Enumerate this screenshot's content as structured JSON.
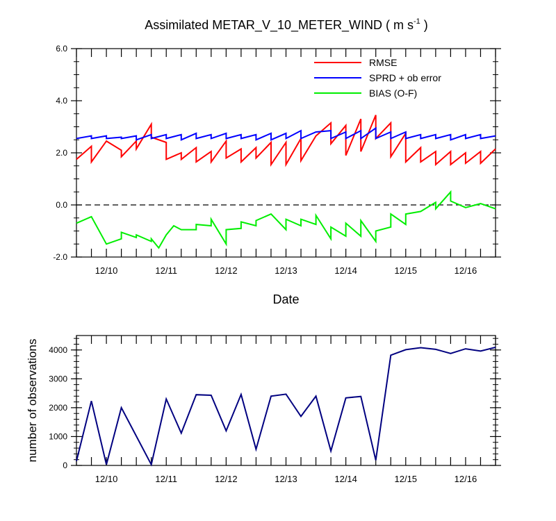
{
  "chart_data": [
    {
      "type": "line",
      "title_main": "Assimilated METAR_V_10_METER_WIND ( m s",
      "title_sup": "-1",
      "title_end": " )",
      "xlabel": "Date",
      "ylabel": "",
      "xlim": [
        0,
        28
      ],
      "ylim": [
        -2,
        6
      ],
      "ytick_values": [
        -2,
        0,
        2,
        4,
        6
      ],
      "ytick_labels": [
        "-2.0",
        "0.0",
        "2.0",
        "4.0",
        "6.0"
      ],
      "xtick_positions": [
        2,
        6,
        10,
        14,
        18,
        22,
        26
      ],
      "xtick_labels": [
        "12/10",
        "12/11",
        "12/12",
        "12/13",
        "12/14",
        "12/15",
        "12/16"
      ],
      "zero_line": 0,
      "legend_position": "top-right",
      "series": [
        {
          "name": "RMSE",
          "color": "#ff0000",
          "points": [
            [
              0,
              1.75
            ],
            [
              1,
              2.25
            ],
            [
              1,
              1.65
            ],
            [
              2,
              2.45
            ],
            [
              3,
              2.1
            ],
            [
              3,
              1.85
            ],
            [
              4,
              2.45
            ],
            [
              4,
              2.15
            ],
            [
              5,
              3.1
            ],
            [
              5,
              2.6
            ],
            [
              6,
              2.4
            ],
            [
              6,
              1.75
            ],
            [
              7,
              2.0
            ],
            [
              7,
              1.75
            ],
            [
              8,
              2.2
            ],
            [
              8,
              1.65
            ],
            [
              9,
              2.05
            ],
            [
              9,
              1.65
            ],
            [
              10,
              2.45
            ],
            [
              10,
              1.8
            ],
            [
              11,
              2.15
            ],
            [
              11,
              1.65
            ],
            [
              12,
              2.2
            ],
            [
              12,
              1.8
            ],
            [
              13,
              2.4
            ],
            [
              13,
              1.55
            ],
            [
              14,
              2.4
            ],
            [
              14,
              1.55
            ],
            [
              15,
              2.55
            ],
            [
              15,
              1.7
            ],
            [
              16,
              2.65
            ],
            [
              17,
              3.15
            ],
            [
              17,
              2.35
            ],
            [
              18,
              3.05
            ],
            [
              18,
              1.9
            ],
            [
              19,
              3.3
            ],
            [
              19,
              2.05
            ],
            [
              20,
              3.45
            ],
            [
              20,
              2.55
            ],
            [
              21,
              3.15
            ],
            [
              21,
              1.85
            ],
            [
              22,
              2.75
            ],
            [
              22,
              1.65
            ],
            [
              23,
              2.2
            ],
            [
              23,
              1.65
            ],
            [
              24,
              2.05
            ],
            [
              24,
              1.55
            ],
            [
              25,
              2.05
            ],
            [
              25,
              1.55
            ],
            [
              26,
              2.0
            ],
            [
              26,
              1.6
            ],
            [
              27,
              2.05
            ],
            [
              27,
              1.6
            ],
            [
              28,
              2.15
            ]
          ]
        },
        {
          "name": "SPRD + ob error",
          "color": "#0000ff",
          "points": [
            [
              0,
              2.55
            ],
            [
              1,
              2.65
            ],
            [
              1,
              2.55
            ],
            [
              2,
              2.65
            ],
            [
              2,
              2.55
            ],
            [
              3,
              2.6
            ],
            [
              3,
              2.55
            ],
            [
              4,
              2.65
            ],
            [
              4,
              2.5
            ],
            [
              5,
              2.7
            ],
            [
              5,
              2.55
            ],
            [
              6,
              2.7
            ],
            [
              6,
              2.55
            ],
            [
              7,
              2.7
            ],
            [
              7,
              2.5
            ],
            [
              8,
              2.75
            ],
            [
              8,
              2.55
            ],
            [
              9,
              2.7
            ],
            [
              9,
              2.55
            ],
            [
              10,
              2.75
            ],
            [
              10,
              2.55
            ],
            [
              11,
              2.7
            ],
            [
              11,
              2.55
            ],
            [
              12,
              2.7
            ],
            [
              12,
              2.5
            ],
            [
              13,
              2.75
            ],
            [
              13,
              2.5
            ],
            [
              14,
              2.75
            ],
            [
              14,
              2.55
            ],
            [
              15,
              2.85
            ],
            [
              15,
              2.55
            ],
            [
              16,
              2.8
            ],
            [
              17,
              2.85
            ],
            [
              17,
              2.55
            ],
            [
              18,
              2.8
            ],
            [
              18,
              2.55
            ],
            [
              19,
              2.85
            ],
            [
              19,
              2.55
            ],
            [
              20,
              2.95
            ],
            [
              20,
              2.55
            ],
            [
              21,
              2.8
            ],
            [
              21,
              2.55
            ],
            [
              22,
              2.8
            ],
            [
              22,
              2.55
            ],
            [
              23,
              2.7
            ],
            [
              23,
              2.55
            ],
            [
              24,
              2.7
            ],
            [
              24,
              2.55
            ],
            [
              25,
              2.7
            ],
            [
              25,
              2.5
            ],
            [
              26,
              2.7
            ],
            [
              26,
              2.55
            ],
            [
              27,
              2.7
            ],
            [
              27,
              2.55
            ],
            [
              28,
              2.65
            ]
          ]
        },
        {
          "name": "BIAS (O-F)",
          "color": "#00ee00",
          "points": [
            [
              0,
              -0.7
            ],
            [
              1,
              -0.45
            ],
            [
              2,
              -1.5
            ],
            [
              3,
              -1.3
            ],
            [
              3,
              -1.05
            ],
            [
              4,
              -1.25
            ],
            [
              4,
              -1.15
            ],
            [
              5,
              -1.4
            ],
            [
              5,
              -1.3
            ],
            [
              5.5,
              -1.65
            ],
            [
              6,
              -1.15
            ],
            [
              6.5,
              -0.8
            ],
            [
              7,
              -0.95
            ],
            [
              8,
              -0.95
            ],
            [
              8,
              -0.75
            ],
            [
              9,
              -0.8
            ],
            [
              9,
              -0.55
            ],
            [
              10,
              -1.5
            ],
            [
              10,
              -0.95
            ],
            [
              11,
              -0.9
            ],
            [
              11,
              -0.65
            ],
            [
              12,
              -0.8
            ],
            [
              12,
              -0.6
            ],
            [
              13,
              -0.35
            ],
            [
              14,
              -0.95
            ],
            [
              14,
              -0.55
            ],
            [
              15,
              -0.8
            ],
            [
              15,
              -0.55
            ],
            [
              16,
              -0.75
            ],
            [
              16,
              -0.4
            ],
            [
              17,
              -1.3
            ],
            [
              17,
              -0.85
            ],
            [
              18,
              -1.2
            ],
            [
              18,
              -0.7
            ],
            [
              19,
              -1.2
            ],
            [
              19,
              -0.6
            ],
            [
              20,
              -1.4
            ],
            [
              20,
              -1.0
            ],
            [
              21,
              -0.85
            ],
            [
              21,
              -0.35
            ],
            [
              22,
              -0.75
            ],
            [
              22,
              -0.35
            ],
            [
              23,
              -0.25
            ],
            [
              24,
              0.1
            ],
            [
              24,
              -0.15
            ],
            [
              25,
              0.5
            ],
            [
              25,
              0.15
            ],
            [
              26,
              -0.1
            ],
            [
              27,
              0.05
            ],
            [
              28,
              -0.15
            ]
          ]
        }
      ]
    },
    {
      "type": "line",
      "title": "",
      "xlabel": "",
      "ylabel": "number of observations",
      "xlim": [
        0,
        28
      ],
      "ylim": [
        0,
        4500
      ],
      "ytick_values": [
        0,
        1000,
        2000,
        3000,
        4000
      ],
      "ytick_labels": [
        "0",
        "1000",
        "2000",
        "3000",
        "4000"
      ],
      "xtick_positions": [
        2,
        6,
        10,
        14,
        18,
        22,
        26
      ],
      "xtick_labels": [
        "12/10",
        "12/11",
        "12/12",
        "12/13",
        "12/14",
        "12/15",
        "12/16"
      ],
      "series": [
        {
          "name": "observations",
          "color": "#000080",
          "points": [
            [
              0,
              150
            ],
            [
              1,
              2230
            ],
            [
              2,
              30
            ],
            [
              3,
              2000
            ],
            [
              5,
              30
            ],
            [
              6,
              2300
            ],
            [
              7,
              1120
            ],
            [
              8,
              2450
            ],
            [
              9,
              2430
            ],
            [
              10,
              1200
            ],
            [
              11,
              2460
            ],
            [
              12,
              560
            ],
            [
              13,
              2400
            ],
            [
              14,
              2470
            ],
            [
              15,
              1700
            ],
            [
              16,
              2400
            ],
            [
              17,
              500
            ],
            [
              18,
              2340
            ],
            [
              19,
              2390
            ],
            [
              20,
              180
            ],
            [
              21,
              3820
            ],
            [
              22,
              4010
            ],
            [
              23,
              4080
            ],
            [
              24,
              4020
            ],
            [
              25,
              3880
            ],
            [
              26,
              4040
            ],
            [
              27,
              3960
            ],
            [
              28,
              4090
            ]
          ]
        }
      ]
    }
  ]
}
